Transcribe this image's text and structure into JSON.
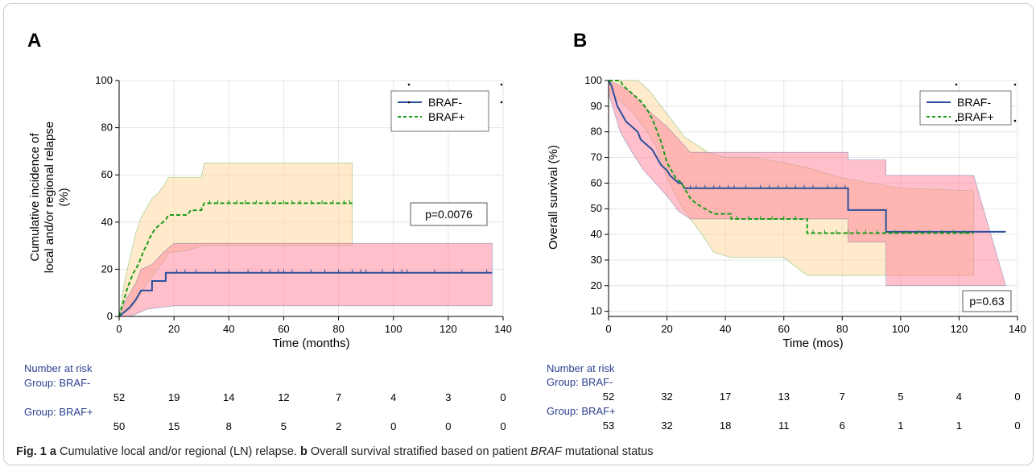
{
  "chart_data": [
    {
      "panel_label": "A",
      "type": "line",
      "subtype": "cumulative-incidence step curves with shaded confidence bands",
      "xlabel": "Time (months)",
      "ylabel_lines": [
        "Cumulative incidence of",
        "local and/or regional relapse",
        "(%)"
      ],
      "xlim": [
        0,
        140
      ],
      "ylim": [
        0,
        100
      ],
      "x_ticks": [
        "0",
        "20",
        "40",
        "60",
        "80",
        "100",
        "120",
        "140"
      ],
      "y_ticks": [
        "0",
        "20",
        "40",
        "60",
        "80",
        "100"
      ],
      "grid": true,
      "legend_position": "top-right",
      "annotation": "p=0.0076",
      "series": [
        {
          "name": "BRAF-",
          "color": "#2b4f9a",
          "line_style": "solid",
          "band_color": "#ff8aa0",
          "points": [
            [
              0,
              0
            ],
            [
              2,
              2
            ],
            [
              4,
              4
            ],
            [
              6,
              7
            ],
            [
              8,
              11
            ],
            [
              12,
              11
            ],
            [
              12,
              15
            ],
            [
              17,
              15
            ],
            [
              17,
              18.5
            ],
            [
              136,
              18.5
            ]
          ],
          "ci_upper": [
            [
              0,
              0
            ],
            [
              2,
              6
            ],
            [
              4,
              10
            ],
            [
              6,
              14
            ],
            [
              8,
              20
            ],
            [
              12,
              22
            ],
            [
              16,
              27
            ],
            [
              20,
              31
            ],
            [
              136,
              31
            ]
          ],
          "ci_lower": [
            [
              0,
              0
            ],
            [
              4,
              0
            ],
            [
              6,
              1
            ],
            [
              10,
              3
            ],
            [
              16,
              4
            ],
            [
              20,
              4.5
            ],
            [
              136,
              4.5
            ]
          ],
          "censor_x": [
            21,
            24,
            28,
            35,
            40,
            47,
            52,
            55,
            58,
            60,
            63,
            70,
            75,
            80,
            85,
            88,
            90,
            96,
            100,
            103,
            105,
            115,
            125,
            134
          ]
        },
        {
          "name": "BRAF+",
          "color": "#1a9c1a",
          "line_style": "dashed",
          "band_color": "#ffd8a0",
          "points": [
            [
              0,
              0
            ],
            [
              1,
              4
            ],
            [
              2,
              8
            ],
            [
              3,
              12
            ],
            [
              4,
              15
            ],
            [
              5,
              18
            ],
            [
              6,
              20
            ],
            [
              7,
              22
            ],
            [
              8,
              25
            ],
            [
              9,
              28
            ],
            [
              10,
              30
            ],
            [
              11,
              33
            ],
            [
              12,
              35
            ],
            [
              13,
              37
            ],
            [
              14,
              38
            ],
            [
              15,
              39
            ],
            [
              16,
              40
            ],
            [
              17,
              41
            ],
            [
              18,
              43
            ],
            [
              25,
              43
            ],
            [
              26,
              45
            ],
            [
              30,
              45
            ],
            [
              31,
              48
            ],
            [
              85,
              48
            ]
          ],
          "ci_upper": [
            [
              0,
              0
            ],
            [
              2,
              15
            ],
            [
              4,
              25
            ],
            [
              6,
              35
            ],
            [
              8,
              42
            ],
            [
              10,
              46
            ],
            [
              12,
              50
            ],
            [
              14,
              52
            ],
            [
              16,
              55
            ],
            [
              18,
              59
            ],
            [
              30,
              59
            ],
            [
              31,
              65
            ],
            [
              85,
              65
            ]
          ],
          "ci_lower": [
            [
              0,
              0
            ],
            [
              4,
              3
            ],
            [
              6,
              6
            ],
            [
              8,
              10
            ],
            [
              10,
              14
            ],
            [
              12,
              17
            ],
            [
              14,
              20
            ],
            [
              16,
              23
            ],
            [
              18,
              27
            ],
            [
              25,
              28
            ],
            [
              30,
              30
            ],
            [
              85,
              30
            ]
          ],
          "censor_x": [
            30,
            33,
            36,
            40,
            43,
            46,
            50,
            54,
            57,
            60,
            63,
            66,
            70,
            74,
            78,
            82,
            84
          ]
        }
      ],
      "risk_table": {
        "title": "Number at risk",
        "times": [
          0,
          20,
          40,
          60,
          80,
          100,
          120,
          140
        ],
        "groups": [
          {
            "label": "Group: BRAF-",
            "values": [
              "52",
              "19",
              "14",
              "12",
              "7",
              "4",
              "3",
              "0"
            ]
          },
          {
            "label": "Group: BRAF+",
            "values": [
              "50",
              "15",
              "8",
              "5",
              "2",
              "0",
              "0",
              "0"
            ]
          }
        ]
      }
    },
    {
      "panel_label": "B",
      "type": "line",
      "subtype": "Kaplan-Meier survival step curves with shaded confidence bands",
      "xlabel": "Time (mos)",
      "ylabel_lines": [
        "Overall survival (%)"
      ],
      "xlim": [
        0,
        140
      ],
      "ylim": [
        8,
        100
      ],
      "x_ticks": [
        "0",
        "20",
        "40",
        "60",
        "80",
        "100",
        "120",
        "140"
      ],
      "y_ticks": [
        "10",
        "20",
        "30",
        "40",
        "50",
        "60",
        "70",
        "80",
        "90",
        "100"
      ],
      "grid": true,
      "legend_position": "top-right",
      "annotation": "p=0.63",
      "series": [
        {
          "name": "BRAF-",
          "color": "#2b4f9a",
          "line_style": "solid",
          "band_color": "#ff8aa0",
          "points": [
            [
              0,
              100
            ],
            [
              1,
              98
            ],
            [
              2,
              94
            ],
            [
              3,
              90
            ],
            [
              4,
              88
            ],
            [
              5,
              86
            ],
            [
              6,
              84
            ],
            [
              8,
              82
            ],
            [
              10,
              80
            ],
            [
              11,
              77
            ],
            [
              13,
              75
            ],
            [
              15,
              73
            ],
            [
              16,
              71
            ],
            [
              18,
              67
            ],
            [
              20,
              65
            ],
            [
              21,
              63
            ],
            [
              23,
              61
            ],
            [
              24,
              60
            ],
            [
              25,
              60
            ],
            [
              26,
              58
            ],
            [
              82,
              58
            ],
            [
              82,
              49.5
            ],
            [
              95,
              49.5
            ],
            [
              95,
              41
            ],
            [
              136,
              41
            ]
          ],
          "ci_upper": [
            [
              0,
              100
            ],
            [
              4,
              98
            ],
            [
              8,
              95
            ],
            [
              12,
              90
            ],
            [
              16,
              86
            ],
            [
              20,
              82
            ],
            [
              24,
              77
            ],
            [
              28,
              72
            ],
            [
              82,
              72
            ],
            [
              82,
              69
            ],
            [
              95,
              69
            ],
            [
              95,
              63
            ],
            [
              125,
              63
            ]
          ],
          "ci_lower": [
            [
              0,
              95
            ],
            [
              4,
              80
            ],
            [
              8,
              72
            ],
            [
              12,
              65
            ],
            [
              16,
              60
            ],
            [
              20,
              55
            ],
            [
              24,
              49
            ],
            [
              28,
              46
            ],
            [
              82,
              46
            ],
            [
              82,
              37
            ],
            [
              95,
              37
            ],
            [
              95,
              20
            ],
            [
              136,
              20
            ]
          ],
          "censor_x": [
            28,
            30,
            33,
            36,
            38,
            41,
            43,
            47,
            52,
            55,
            58,
            61,
            64,
            67,
            70,
            75,
            78,
            81
          ]
        },
        {
          "name": "BRAF+",
          "color": "#1a9c1a",
          "line_style": "dashed",
          "band_color": "#ffd8a0",
          "points": [
            [
              0,
              100
            ],
            [
              4,
              100
            ],
            [
              5,
              98
            ],
            [
              7,
              96
            ],
            [
              9,
              94
            ],
            [
              11,
              92
            ],
            [
              13,
              89
            ],
            [
              14,
              87
            ],
            [
              15,
              85
            ],
            [
              16,
              82
            ],
            [
              17,
              79
            ],
            [
              18,
              76
            ],
            [
              19,
              72
            ],
            [
              20,
              68
            ],
            [
              21,
              66
            ],
            [
              22,
              64
            ],
            [
              23,
              62
            ],
            [
              25,
              60
            ],
            [
              26,
              58
            ],
            [
              27,
              56
            ],
            [
              28,
              54
            ],
            [
              30,
              52
            ],
            [
              33,
              50
            ],
            [
              36,
              48
            ],
            [
              42,
              48
            ],
            [
              42,
              46
            ],
            [
              45,
              46
            ],
            [
              68,
              46
            ],
            [
              68,
              40.5
            ],
            [
              125,
              40.5
            ]
          ],
          "ci_upper": [
            [
              0,
              100
            ],
            [
              10,
              100
            ],
            [
              14,
              96
            ],
            [
              18,
              90
            ],
            [
              22,
              84
            ],
            [
              26,
              78
            ],
            [
              30,
              75
            ],
            [
              34,
              72
            ],
            [
              40,
              70
            ],
            [
              50,
              70
            ],
            [
              60,
              68
            ],
            [
              68,
              66
            ],
            [
              80,
              62
            ],
            [
              100,
              58
            ],
            [
              125,
              57
            ]
          ],
          "ci_lower": [
            [
              0,
              96
            ],
            [
              8,
              88
            ],
            [
              12,
              82
            ],
            [
              16,
              75
            ],
            [
              20,
              62
            ],
            [
              24,
              53
            ],
            [
              28,
              46
            ],
            [
              32,
              40
            ],
            [
              36,
              33
            ],
            [
              42,
              31
            ],
            [
              60,
              31
            ],
            [
              68,
              24
            ],
            [
              125,
              24
            ]
          ],
          "censor_x": [
            44,
            48,
            52,
            56,
            60,
            64,
            70,
            74,
            78,
            82,
            85,
            88,
            92,
            95,
            98,
            102,
            106,
            110,
            114,
            118,
            122
          ]
        }
      ],
      "risk_table": {
        "title": "Number at risk",
        "times": [
          0,
          20,
          40,
          60,
          80,
          100,
          120,
          140
        ],
        "groups": [
          {
            "label": "Group: BRAF-",
            "values": [
              "52",
              "32",
              "17",
              "13",
              "7",
              "5",
              "4",
              "0"
            ]
          },
          {
            "label": "Group: BRAF+",
            "values": [
              "53",
              "32",
              "18",
              "11",
              "6",
              "1",
              "1",
              "0"
            ]
          }
        ]
      }
    }
  ],
  "caption": {
    "prefix": "Fig. 1",
    "a_label": "a",
    "a_text": "Cumulative local and/or regional (LN) relapse.",
    "b_label": "b",
    "b_text_1": "Overall survival stratified based on patient",
    "b_italic": "BRAF",
    "b_text_2": "mutational status"
  }
}
